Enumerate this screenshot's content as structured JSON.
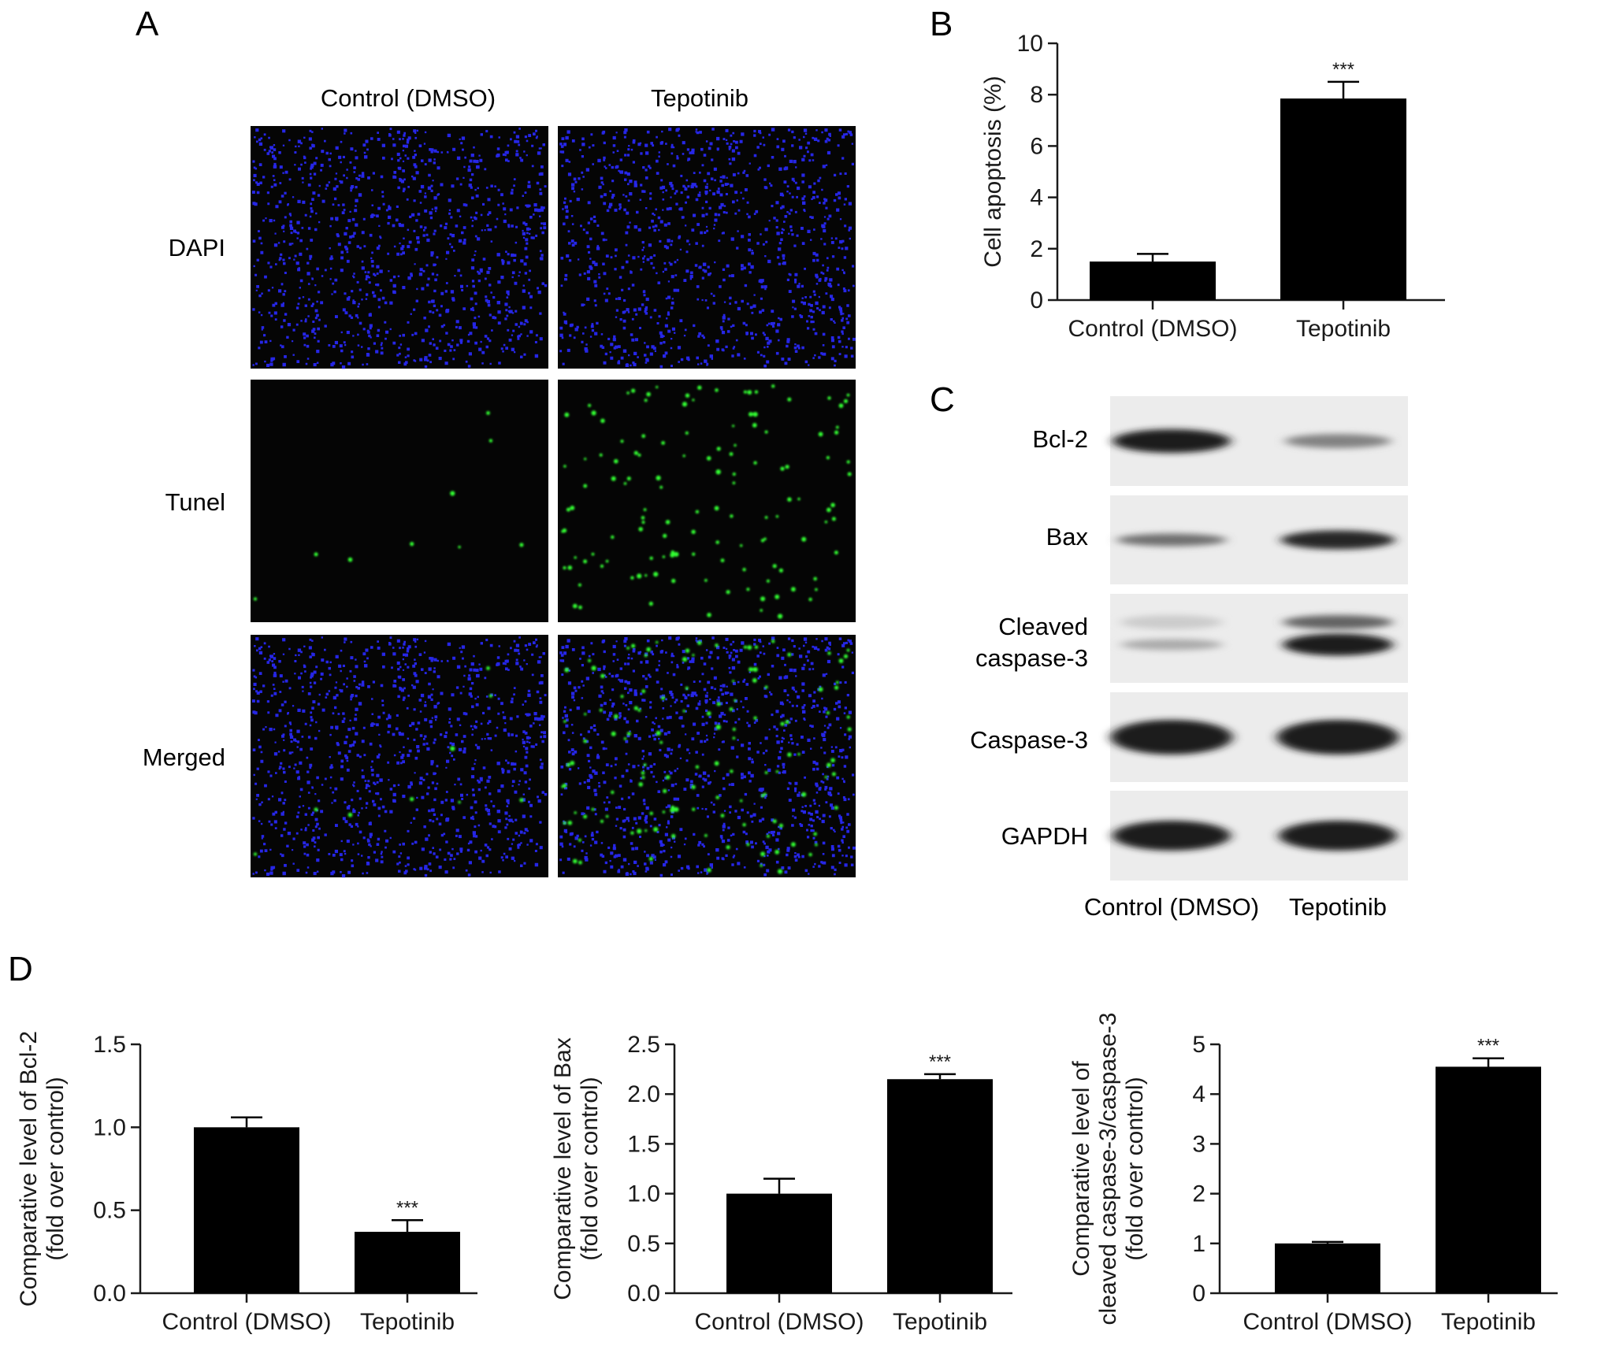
{
  "panels": {
    "a": {
      "letter": "A",
      "columns": [
        "Control (DMSO)",
        "Tepotinib"
      ],
      "rows": [
        "DAPI",
        "Tunel",
        "Merged"
      ],
      "colors": {
        "dapi": "#2626e6",
        "tunel": "#33ff33",
        "background": "#050505"
      }
    },
    "b": {
      "letter": "B"
    },
    "c": {
      "letter": "C",
      "bands": [
        "Bcl-2",
        "Bax",
        "Cleaved caspase-3",
        "Caspase-3",
        "GAPDH"
      ],
      "lanes": [
        "Control (DMSO)",
        "Tepotinib"
      ],
      "band_intensity": [
        [
          0.95,
          0.45
        ],
        [
          0.55,
          0.9
        ],
        [
          0.25,
          0.95
        ],
        [
          0.95,
          0.95
        ],
        [
          0.95,
          0.95
        ]
      ]
    },
    "d": {
      "letter": "D"
    }
  },
  "chart_data": [
    {
      "id": "B",
      "type": "bar",
      "categories": [
        "Control (DMSO)",
        "Tepotinib"
      ],
      "values": [
        1.5,
        7.85
      ],
      "errors": [
        0.3,
        0.65
      ],
      "significance": [
        "",
        "***"
      ],
      "ylabel": "Cell apoptosis (%)",
      "ylim": [
        0,
        10
      ],
      "yticks": [
        "0",
        "2",
        "4",
        "6",
        "8",
        "10"
      ],
      "ytick_values": [
        0,
        2,
        4,
        6,
        8,
        10
      ]
    },
    {
      "id": "D1",
      "type": "bar",
      "categories": [
        "Control (DMSO)",
        "Tepotinib"
      ],
      "values": [
        1.0,
        0.37
      ],
      "errors": [
        0.06,
        0.07
      ],
      "significance": [
        "",
        "***"
      ],
      "ylabel": [
        "Comparative level of Bcl-2",
        "(fold over control)"
      ],
      "ylim": [
        0,
        1.5
      ],
      "yticks": [
        "0.0",
        "0.5",
        "1.0",
        "1.5"
      ],
      "ytick_values": [
        0,
        0.5,
        1.0,
        1.5
      ]
    },
    {
      "id": "D2",
      "type": "bar",
      "categories": [
        "Control (DMSO)",
        "Tepotinib"
      ],
      "values": [
        1.0,
        2.15
      ],
      "errors": [
        0.15,
        0.05
      ],
      "significance": [
        "",
        "***"
      ],
      "ylabel": [
        "Comparative level of Bax",
        "(fold over control)"
      ],
      "ylim": [
        0,
        2.5
      ],
      "yticks": [
        "0.0",
        "0.5",
        "1.0",
        "1.5",
        "2.0",
        "2.5"
      ],
      "ytick_values": [
        0,
        0.5,
        1.0,
        1.5,
        2.0,
        2.5
      ]
    },
    {
      "id": "D3",
      "type": "bar",
      "categories": [
        "Control (DMSO)",
        "Tepotinib"
      ],
      "values": [
        1.0,
        4.55
      ],
      "errors": [
        0.03,
        0.17
      ],
      "significance": [
        "",
        "***"
      ],
      "ylabel": [
        "Comparative level of",
        "cleaved caspase-3/caspase-3",
        "(fold over control)"
      ],
      "ylim": [
        0,
        5
      ],
      "yticks": [
        "0",
        "1",
        "2",
        "3",
        "4",
        "5"
      ],
      "ytick_values": [
        0,
        1,
        2,
        3,
        4,
        5
      ]
    }
  ]
}
